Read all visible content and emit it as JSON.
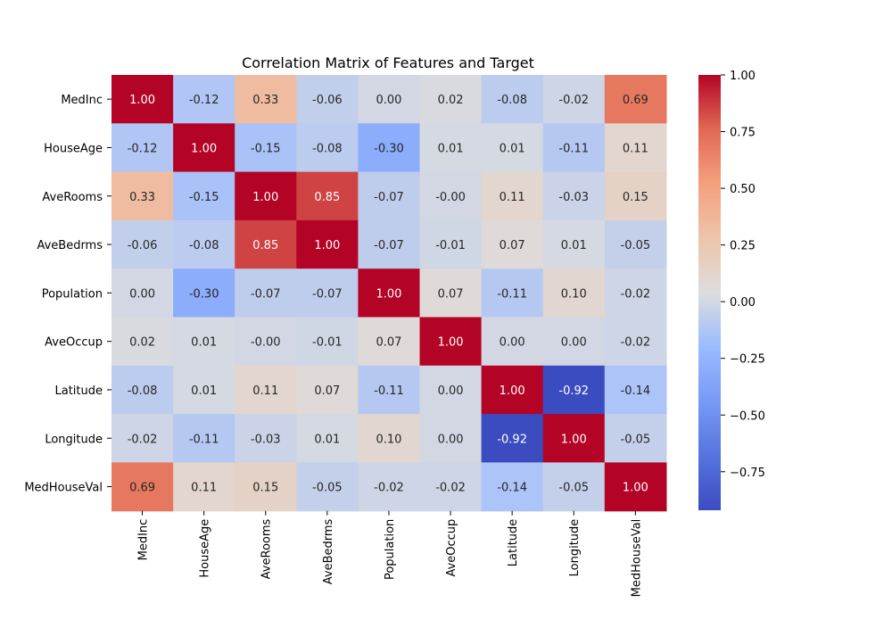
{
  "chart_data": {
    "type": "heatmap",
    "title": "Correlation Matrix of Features and Target",
    "xlabel": "",
    "ylabel": "",
    "labels": [
      "MedInc",
      "HouseAge",
      "AveRooms",
      "AveBedrms",
      "Population",
      "AveOccup",
      "Latitude",
      "Longitude",
      "MedHouseVal"
    ],
    "values": [
      [
        1.0,
        -0.12,
        0.33,
        -0.06,
        0.0,
        0.02,
        -0.08,
        -0.02,
        0.69
      ],
      [
        -0.12,
        1.0,
        -0.15,
        -0.08,
        -0.3,
        0.01,
        0.01,
        -0.11,
        0.11
      ],
      [
        0.33,
        -0.15,
        1.0,
        0.85,
        -0.07,
        -0.0,
        0.11,
        -0.03,
        0.15
      ],
      [
        -0.06,
        -0.08,
        0.85,
        1.0,
        -0.07,
        -0.01,
        0.07,
        0.01,
        -0.05
      ],
      [
        0.0,
        -0.3,
        -0.07,
        -0.07,
        1.0,
        0.07,
        -0.11,
        0.1,
        -0.02
      ],
      [
        0.02,
        0.01,
        -0.0,
        -0.01,
        0.07,
        1.0,
        0.0,
        0.0,
        -0.02
      ],
      [
        -0.08,
        0.01,
        0.11,
        0.07,
        -0.11,
        0.0,
        1.0,
        -0.92,
        -0.14
      ],
      [
        -0.02,
        -0.11,
        -0.03,
        0.01,
        0.1,
        0.0,
        -0.92,
        1.0,
        -0.05
      ],
      [
        0.69,
        0.11,
        0.15,
        -0.05,
        -0.02,
        -0.02,
        -0.14,
        -0.05,
        1.0
      ]
    ],
    "annotations": [
      [
        "1.00",
        "-0.12",
        "0.33",
        "-0.06",
        "0.00",
        "0.02",
        "-0.08",
        "-0.02",
        "0.69"
      ],
      [
        "-0.12",
        "1.00",
        "-0.15",
        "-0.08",
        "-0.30",
        "0.01",
        "0.01",
        "-0.11",
        "0.11"
      ],
      [
        "0.33",
        "-0.15",
        "1.00",
        "0.85",
        "-0.07",
        "-0.00",
        "0.11",
        "-0.03",
        "0.15"
      ],
      [
        "-0.06",
        "-0.08",
        "0.85",
        "1.00",
        "-0.07",
        "-0.01",
        "0.07",
        "0.01",
        "-0.05"
      ],
      [
        "0.00",
        "-0.30",
        "-0.07",
        "-0.07",
        "1.00",
        "0.07",
        "-0.11",
        "0.10",
        "-0.02"
      ],
      [
        "0.02",
        "0.01",
        "-0.00",
        "-0.01",
        "0.07",
        "1.00",
        "0.00",
        "0.00",
        "-0.02"
      ],
      [
        "-0.08",
        "0.01",
        "0.11",
        "0.07",
        "-0.11",
        "0.00",
        "1.00",
        "-0.92",
        "-0.14"
      ],
      [
        "-0.02",
        "-0.11",
        "-0.03",
        "0.01",
        "0.10",
        "0.00",
        "-0.92",
        "1.00",
        "-0.05"
      ],
      [
        "0.69",
        "0.11",
        "0.15",
        "-0.05",
        "-0.02",
        "-0.02",
        "-0.14",
        "-0.05",
        "1.00"
      ]
    ],
    "colormap": "coolwarm",
    "color_range": [
      -0.92,
      1.0
    ],
    "colorbar": {
      "ticks": [
        1.0,
        0.75,
        0.5,
        0.25,
        0.0,
        -0.25,
        -0.5,
        -0.75
      ],
      "tick_labels": [
        "1.00",
        "0.75",
        "0.50",
        "0.25",
        "0.00",
        "−0.25",
        "−0.50",
        "−0.75"
      ],
      "placement": "right"
    },
    "grid": false
  }
}
